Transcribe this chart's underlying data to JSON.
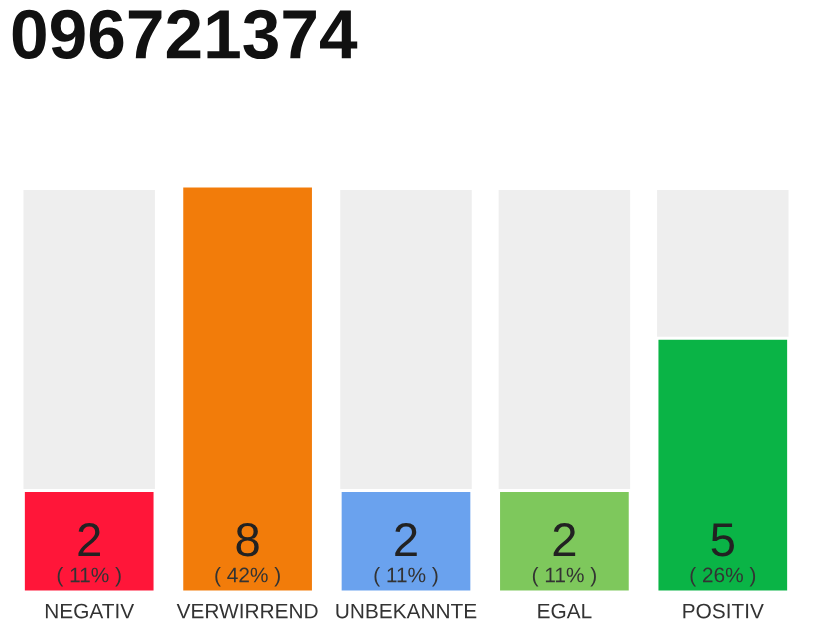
{
  "chart_data": {
    "type": "bar",
    "title": "096721374",
    "categories": [
      "NEGATIV",
      "VERWIRREND",
      "UNBEKANNTE",
      "EGAL",
      "POSITIV"
    ],
    "values": [
      2,
      8,
      2,
      2,
      5
    ],
    "colors": [
      "#ff1639",
      "#f27c0a",
      "#6aa2ee",
      "#7ec85c",
      "#0ab446"
    ],
    "data_labels": true,
    "annotations": [
      "( 11% )",
      "( 42% )",
      "( 11% )",
      "( 11% )",
      "( 26% )"
    ]
  }
}
